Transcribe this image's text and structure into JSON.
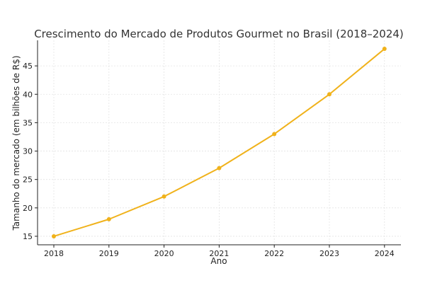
{
  "chart_data": {
    "type": "line",
    "title": "Crescimento do Mercado de Produtos Gourmet no Brasil (2018–2024)",
    "xlabel": "Ano",
    "ylabel": "Tamanho do mercado (em bilhões de R$)",
    "x": [
      "2018",
      "2019",
      "2020",
      "2021",
      "2022",
      "2023",
      "2024"
    ],
    "series": [
      {
        "values": [
          15,
          18,
          22,
          27,
          33,
          40,
          48
        ]
      }
    ],
    "yticks": [
      15,
      20,
      25,
      30,
      35,
      40,
      45
    ],
    "ylim": [
      13.5,
      49.5
    ],
    "grid": true,
    "color": "#f0b21b"
  }
}
